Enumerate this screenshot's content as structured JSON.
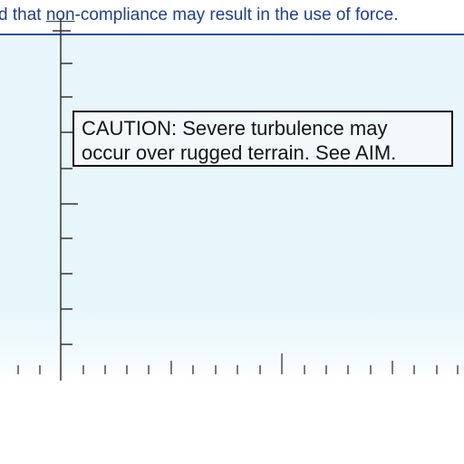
{
  "notice": {
    "before_underline": "d that ",
    "underlined": "non",
    "after_underline": "-compliance may result in the use of force."
  },
  "caution": {
    "line1": "CAUTION: Severe turbulence may",
    "line2": "occur over rugged terrain. See AIM."
  },
  "colors": {
    "notice_text": "#1f3f8a",
    "rule": "#2c4f93",
    "water_tint": "#e8f6fc",
    "tick": "#333333"
  }
}
